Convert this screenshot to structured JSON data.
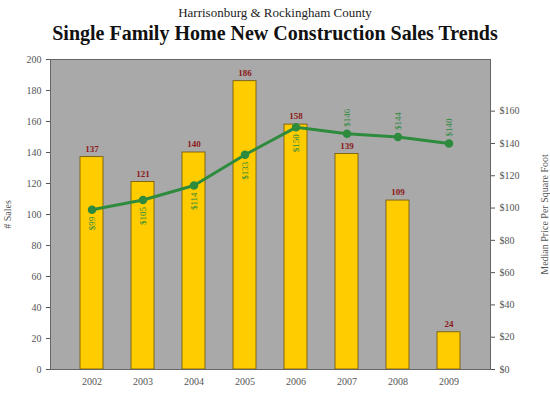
{
  "chart_data": {
    "type": "bar",
    "title": "Single Family Home New Construction Sales Trends",
    "subtitle": "Harrisonburg & Rockingham County",
    "categories": [
      "2002",
      "2003",
      "2004",
      "2005",
      "2006",
      "2007",
      "2008",
      "2009"
    ],
    "series": [
      {
        "type": "bar",
        "color": "#FFCC00",
        "values": [
          137,
          121,
          140,
          186,
          158,
          139,
          109,
          24
        ]
      },
      {
        "type": "line",
        "axis": "y2",
        "color": "#2E8B3E",
        "marker": "circle",
        "values": [
          99,
          105,
          114,
          133,
          150,
          146,
          144,
          140
        ],
        "value_labels": [
          "$99",
          "$105",
          "$114",
          "$133",
          "$150",
          "$146",
          "$144",
          "$140"
        ]
      }
    ],
    "ylabel": "# Sales",
    "y2label": "Median Price Per Square Foot",
    "ylim": [
      0,
      200
    ],
    "yticks": [
      0,
      20,
      40,
      60,
      80,
      100,
      120,
      140,
      160,
      180,
      200
    ],
    "y2lim": [
      0,
      192
    ],
    "y2ticks": [
      {
        "value": 0,
        "label": "$0"
      },
      {
        "value": 20,
        "label": "$20"
      },
      {
        "value": 40,
        "label": "$40"
      },
      {
        "value": 60,
        "label": "$60"
      },
      {
        "value": 80,
        "label": "$80"
      },
      {
        "value": 100,
        "label": "$100"
      },
      {
        "value": 120,
        "label": "$120"
      },
      {
        "value": 140,
        "label": "$140"
      },
      {
        "value": 160,
        "label": "$160"
      }
    ],
    "data_labels": true,
    "grid": false
  }
}
